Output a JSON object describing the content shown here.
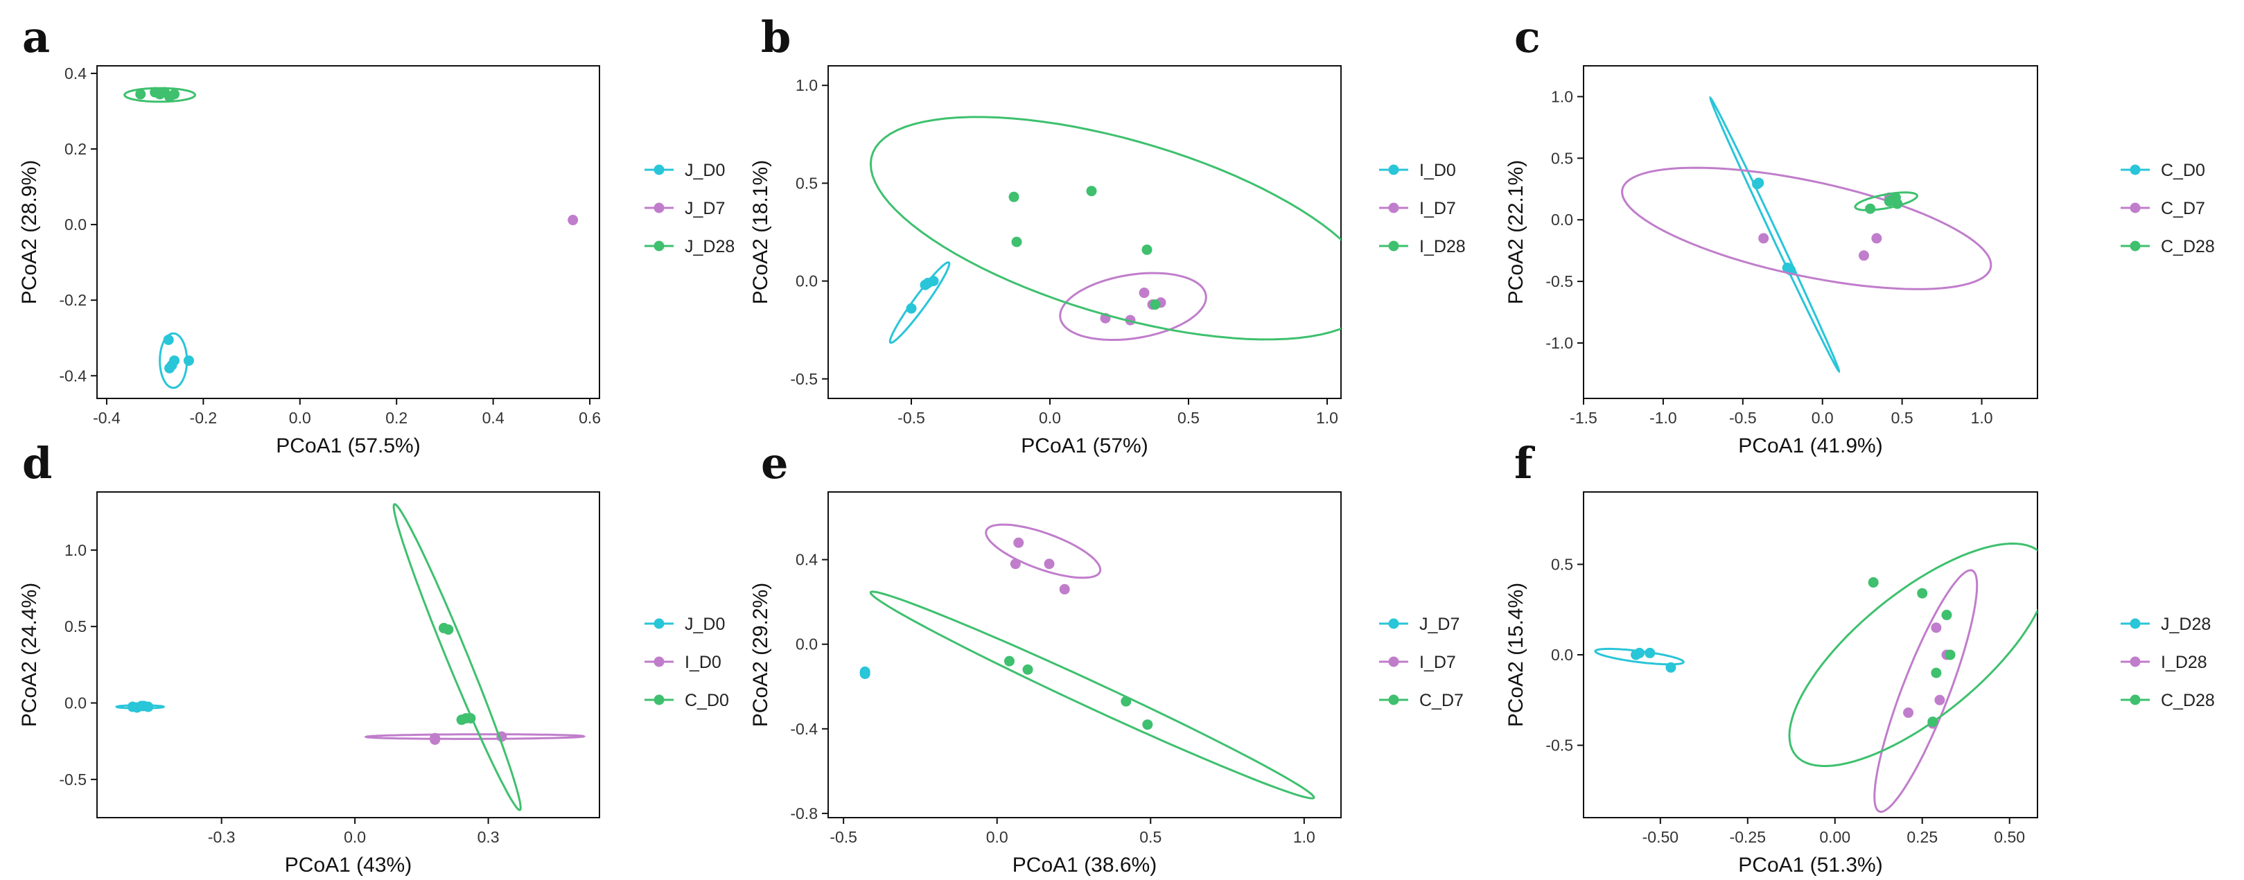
{
  "colors": {
    "D0_or_J": "#29C5D8",
    "D7_or_I": "#C07DCB",
    "D28_or_C": "#3EC06E"
  },
  "chart_data": [
    {
      "panel": "a",
      "type": "scatter",
      "xlabel": "PCoA1 (57.5%)",
      "ylabel": "PCoA2 (28.9%)",
      "xlim": [
        -0.42,
        0.62
      ],
      "ylim": [
        -0.46,
        0.42
      ],
      "xticks": [
        -0.4,
        -0.2,
        0.0,
        0.2,
        0.4,
        0.6
      ],
      "xtick_labels": [
        "-0.4",
        "-0.2",
        "0.0",
        "0.2",
        "0.4",
        "0.6"
      ],
      "yticks": [
        -0.4,
        -0.2,
        0.0,
        0.2,
        0.4
      ],
      "ytick_labels": [
        "-0.4",
        "-0.2",
        "0.0",
        "0.2",
        "0.4"
      ],
      "series": [
        {
          "name": "J_D0",
          "color": "#29C5D8",
          "points": [
            [
              -0.272,
              -0.305
            ],
            [
              -0.265,
              -0.372
            ],
            [
              -0.26,
              -0.36
            ],
            [
              -0.23,
              -0.36
            ],
            [
              -0.27,
              -0.38
            ]
          ],
          "ellipse": {
            "cx": -0.262,
            "cy": -0.36,
            "rx": 0.028,
            "ry": 0.072,
            "angle": 0
          }
        },
        {
          "name": "J_D7",
          "color": "#C07DCB",
          "points": [
            [
              0.565,
              0.012
            ]
          ]
        },
        {
          "name": "J_D28",
          "color": "#3EC06E",
          "points": [
            [
              -0.33,
              0.345
            ],
            [
              -0.3,
              0.35
            ],
            [
              -0.29,
              0.345
            ],
            [
              -0.27,
              0.338
            ],
            [
              -0.26,
              0.345
            ],
            [
              -0.28,
              0.35
            ]
          ],
          "ellipse": {
            "cx": -0.29,
            "cy": 0.343,
            "rx": 0.073,
            "ry": 0.018,
            "angle": 0
          }
        }
      ]
    },
    {
      "panel": "b",
      "type": "scatter",
      "xlabel": "PCoA1 (57%)",
      "ylabel": "PCoA2 (18.1%)",
      "xlim": [
        -0.8,
        1.05
      ],
      "ylim": [
        -0.6,
        1.1
      ],
      "xticks": [
        -0.5,
        0.0,
        0.5,
        1.0
      ],
      "xtick_labels": [
        "-0.5",
        "0.0",
        "0.5",
        "1.0"
      ],
      "yticks": [
        -0.5,
        0.0,
        0.5,
        1.0
      ],
      "ytick_labels": [
        "-0.5",
        "0.0",
        "0.5",
        "1.0"
      ],
      "series": [
        {
          "name": "I_D0",
          "color": "#29C5D8",
          "points": [
            [
              -0.5,
              -0.14
            ],
            [
              -0.44,
              -0.01
            ],
            [
              -0.42,
              0.0
            ],
            [
              -0.45,
              -0.02
            ]
          ],
          "ellipse": {
            "cx": -0.47,
            "cy": -0.11,
            "rx": 0.23,
            "ry": 0.025,
            "angle": 63
          }
        },
        {
          "name": "I_D7",
          "color": "#C07DCB",
          "points": [
            [
              0.2,
              -0.19
            ],
            [
              0.29,
              -0.2
            ],
            [
              0.34,
              -0.06
            ],
            [
              0.37,
              -0.12
            ],
            [
              0.4,
              -0.11
            ]
          ],
          "ellipse": {
            "cx": 0.3,
            "cy": -0.13,
            "rx": 0.27,
            "ry": 0.16,
            "angle": 16
          }
        },
        {
          "name": "I_D28",
          "color": "#3EC06E",
          "points": [
            [
              -0.13,
              0.43
            ],
            [
              0.15,
              0.46
            ],
            [
              -0.12,
              0.2
            ],
            [
              0.35,
              0.16
            ],
            [
              0.38,
              -0.12
            ]
          ],
          "ellipse": {
            "cx": 0.26,
            "cy": 0.27,
            "rx": 0.98,
            "ry": 0.43,
            "angle": -25
          }
        }
      ]
    },
    {
      "panel": "c",
      "type": "scatter",
      "xlabel": "PCoA1 (41.9%)",
      "ylabel": "PCoA2 (22.1%)",
      "xlim": [
        -1.5,
        1.35
      ],
      "ylim": [
        -1.45,
        1.25
      ],
      "xticks": [
        -1.5,
        -1.0,
        -0.5,
        0.0,
        0.5,
        1.0
      ],
      "xtick_labels": [
        "-1.5",
        "-1.0",
        "-0.5",
        "0.0",
        "0.5",
        "1.0"
      ],
      "yticks": [
        -1.0,
        -0.5,
        0.0,
        0.5,
        1.0
      ],
      "ytick_labels": [
        "-1.0",
        "-0.5",
        "0.0",
        "0.5",
        "1.0"
      ],
      "series": [
        {
          "name": "C_D0",
          "color": "#29C5D8",
          "points": [
            [
              -0.41,
              0.29
            ],
            [
              -0.4,
              0.3
            ],
            [
              -0.22,
              -0.39
            ],
            [
              -0.2,
              -0.41
            ]
          ],
          "ellipse": {
            "cx": -0.3,
            "cy": -0.12,
            "rx": 1.18,
            "ry": 0.02,
            "angle": -70
          }
        },
        {
          "name": "C_D7",
          "color": "#C07DCB",
          "points": [
            [
              -0.37,
              -0.15
            ],
            [
              0.26,
              -0.29
            ],
            [
              0.34,
              -0.15
            ],
            [
              0.42,
              0.18
            ],
            [
              0.45,
              0.17
            ]
          ],
          "ellipse": {
            "cx": -0.1,
            "cy": -0.07,
            "rx": 1.2,
            "ry": 0.38,
            "angle": -16
          }
        },
        {
          "name": "C_D28",
          "color": "#3EC06E",
          "points": [
            [
              0.3,
              0.09
            ],
            [
              0.42,
              0.15
            ],
            [
              0.46,
              0.18
            ],
            [
              0.47,
              0.13
            ],
            [
              0.44,
              0.16
            ]
          ],
          "ellipse": {
            "cx": 0.4,
            "cy": 0.15,
            "rx": 0.2,
            "ry": 0.055,
            "angle": 14
          }
        }
      ]
    },
    {
      "panel": "d",
      "type": "scatter",
      "xlabel": "PCoA1 (43%)",
      "ylabel": "PCoA2 (24.4%)",
      "xlim": [
        -0.58,
        0.55
      ],
      "ylim": [
        -0.75,
        1.38
      ],
      "xticks": [
        -0.3,
        0.0,
        0.3
      ],
      "xtick_labels": [
        "-0.3",
        "0.0",
        "0.3"
      ],
      "yticks": [
        -0.5,
        0.0,
        0.5,
        1.0
      ],
      "ytick_labels": [
        "-0.5",
        "0.0",
        "0.5",
        "1.0"
      ],
      "series": [
        {
          "name": "J_D0",
          "color": "#29C5D8",
          "points": [
            [
              -0.5,
              -0.025
            ],
            [
              -0.49,
              -0.03
            ],
            [
              -0.475,
              -0.02
            ],
            [
              -0.465,
              -0.025
            ],
            [
              -0.48,
              -0.02
            ]
          ],
          "ellipse": {
            "cx": -0.483,
            "cy": -0.025,
            "rx": 0.053,
            "ry": 0.01,
            "angle": 0
          }
        },
        {
          "name": "I_D0",
          "color": "#C07DCB",
          "points": [
            [
              0.18,
              -0.23
            ],
            [
              0.18,
              -0.24
            ],
            [
              0.33,
              -0.22
            ]
          ],
          "ellipse": {
            "cx": 0.27,
            "cy": -0.22,
            "rx": 0.245,
            "ry": 0.015,
            "angle": 0.4
          }
        },
        {
          "name": "C_D0",
          "color": "#3EC06E",
          "points": [
            [
              0.2,
              0.49
            ],
            [
              0.21,
              0.48
            ],
            [
              0.25,
              -0.1
            ],
            [
              0.26,
              -0.1
            ],
            [
              0.24,
              -0.11
            ]
          ],
          "ellipse": {
            "cx": 0.23,
            "cy": 0.3,
            "rx": 1.01,
            "ry": 0.025,
            "angle": -82
          }
        }
      ]
    },
    {
      "panel": "e",
      "type": "scatter",
      "xlabel": "PCoA1 (38.6%)",
      "ylabel": "PCoA2 (29.2%)",
      "xlim": [
        -0.55,
        1.12
      ],
      "ylim": [
        -0.82,
        0.72
      ],
      "xticks": [
        -0.5,
        0.0,
        0.5,
        1.0
      ],
      "xtick_labels": [
        "-0.5",
        "0.0",
        "0.5",
        "1.0"
      ],
      "yticks": [
        -0.8,
        -0.4,
        0.0,
        0.4
      ],
      "ytick_labels": [
        "-0.8",
        "-0.4",
        "0.0",
        "0.4"
      ],
      "series": [
        {
          "name": "J_D7",
          "color": "#29C5D8",
          "points": [
            [
              -0.43,
              -0.13
            ],
            [
              -0.43,
              -0.14
            ],
            [
              -0.43,
              -0.135
            ]
          ]
        },
        {
          "name": "I_D7",
          "color": "#C07DCB",
          "points": [
            [
              0.07,
              0.48
            ],
            [
              0.06,
              0.38
            ],
            [
              0.17,
              0.38
            ],
            [
              0.22,
              0.26
            ]
          ],
          "ellipse": {
            "cx": 0.15,
            "cy": 0.44,
            "rx": 0.21,
            "ry": 0.08,
            "angle": -30
          }
        },
        {
          "name": "C_D7",
          "color": "#3EC06E",
          "points": [
            [
              0.04,
              -0.08
            ],
            [
              0.1,
              -0.12
            ],
            [
              0.42,
              -0.27
            ],
            [
              0.49,
              -0.38
            ]
          ],
          "ellipse": {
            "cx": 0.31,
            "cy": -0.24,
            "rx": 0.87,
            "ry": 0.055,
            "angle": -34
          }
        }
      ]
    },
    {
      "panel": "f",
      "type": "scatter",
      "xlabel": "PCoA1 (51.3%)",
      "ylabel": "PCoA2 (15.4%)",
      "xlim": [
        -0.72,
        0.58
      ],
      "ylim": [
        -0.9,
        0.9
      ],
      "xticks": [
        -0.5,
        -0.25,
        0.0,
        0.25,
        0.5
      ],
      "xtick_labels": [
        "-0.50",
        "-0.25",
        "0.00",
        "0.25",
        "0.50"
      ],
      "yticks": [
        -0.5,
        0.0,
        0.5
      ],
      "ytick_labels": [
        "-0.5",
        "0.0",
        "0.5"
      ],
      "series": [
        {
          "name": "J_D28",
          "color": "#29C5D8",
          "points": [
            [
              -0.57,
              0.0
            ],
            [
              -0.56,
              0.01
            ],
            [
              -0.53,
              0.01
            ],
            [
              -0.47,
              -0.07
            ]
          ],
          "ellipse": {
            "cx": -0.56,
            "cy": -0.01,
            "rx": 0.13,
            "ry": 0.03,
            "angle": -14
          }
        },
        {
          "name": "I_D28",
          "color": "#C07DCB",
          "points": [
            [
              0.21,
              -0.32
            ],
            [
              0.28,
              -0.38
            ],
            [
              0.29,
              0.15
            ],
            [
              0.32,
              0.0
            ],
            [
              0.3,
              -0.25
            ]
          ],
          "ellipse": {
            "cx": 0.26,
            "cy": -0.2,
            "rx": 0.68,
            "ry": 0.07,
            "angle": 79
          }
        },
        {
          "name": "C_D28",
          "color": "#3EC06E",
          "points": [
            [
              0.11,
              0.4
            ],
            [
              0.25,
              0.34
            ],
            [
              0.32,
              0.22
            ],
            [
              0.33,
              0.0
            ],
            [
              0.29,
              -0.1
            ],
            [
              0.28,
              -0.37
            ]
          ],
          "ellipse": {
            "cx": 0.24,
            "cy": 0.0,
            "rx": 0.68,
            "ry": 0.23,
            "angle": 63
          }
        }
      ]
    }
  ]
}
